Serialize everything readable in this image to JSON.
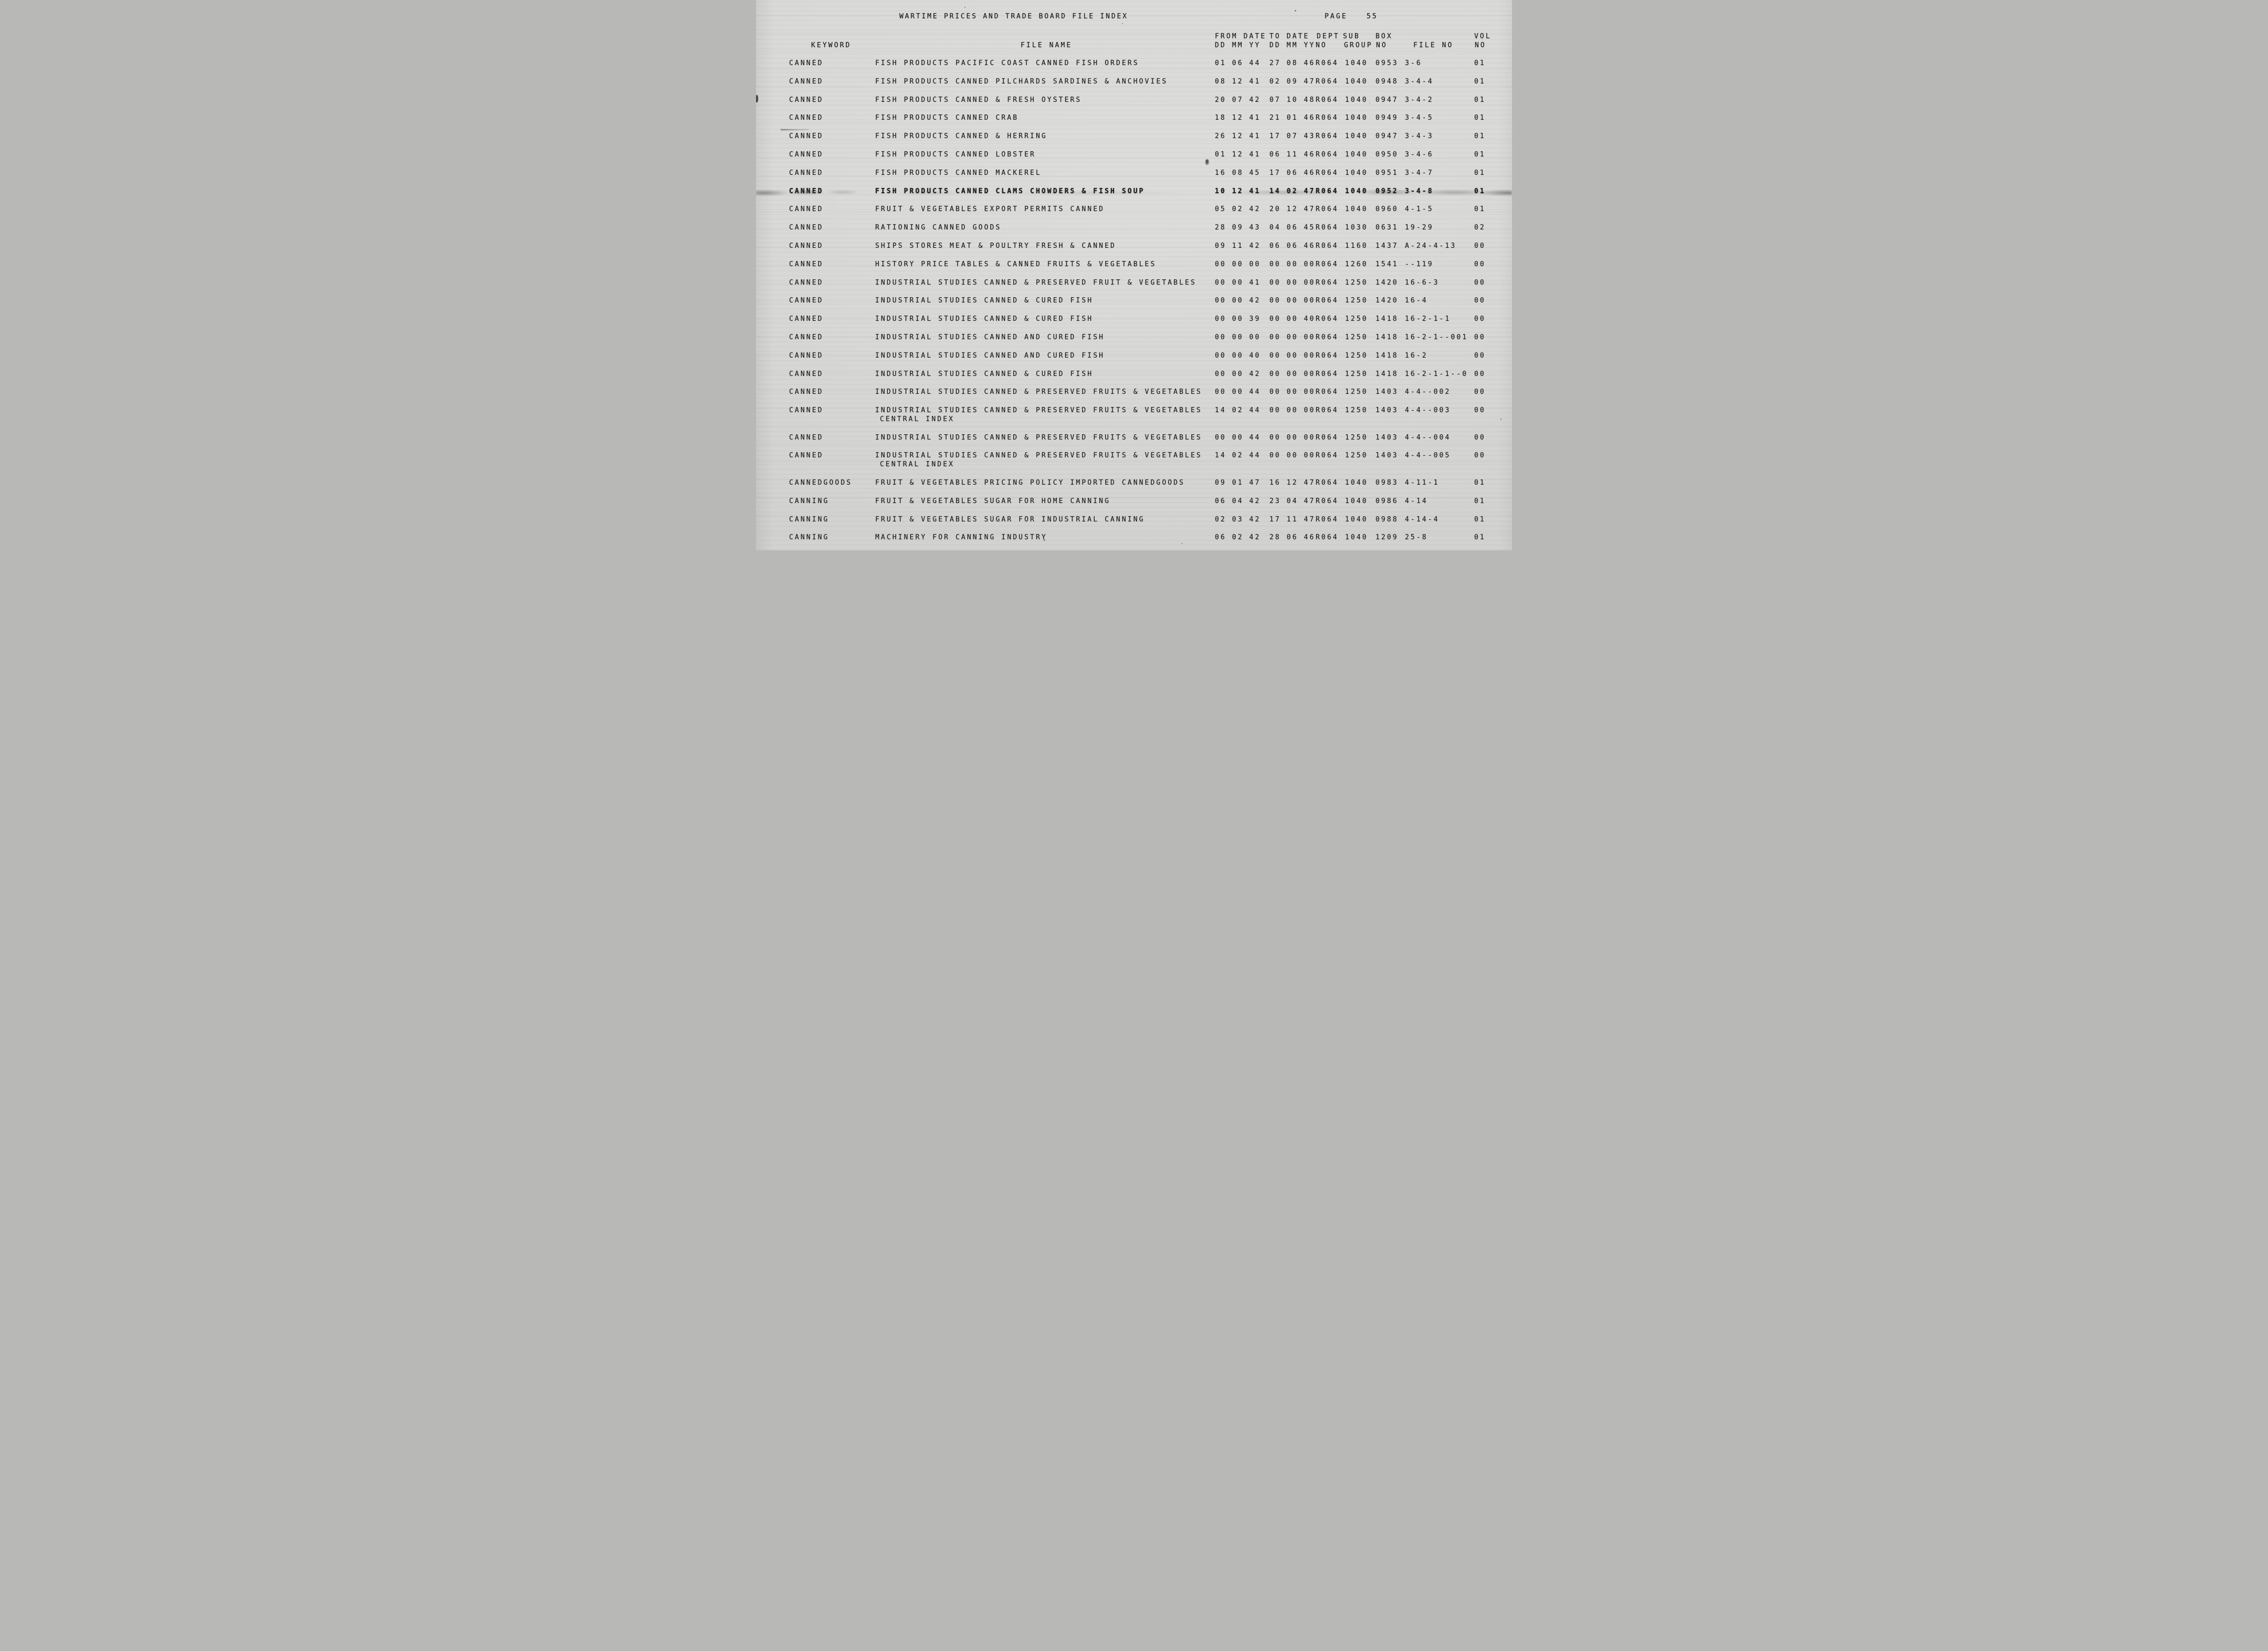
{
  "page": {
    "title": "WARTIME PRICES AND TRADE BOARD FILE INDEX",
    "page_label": "PAGE",
    "page_number": "55"
  },
  "table": {
    "headers": {
      "keyword": "KEYWORD",
      "file_name": "FILE NAME",
      "from_date_top": "FROM DATE",
      "from_date_bottom": "DD MM YY",
      "to_date_top": "TO DATE",
      "to_date_bottom": "DD MM YY",
      "dept_top": "DEPT",
      "dept_bottom": "NO",
      "sub_top": "SUB",
      "sub_bottom": "GROUP",
      "box_top": "BOX",
      "box_bottom": "NO",
      "file_no": "FILE NO",
      "vol_top": "VOL",
      "vol_bottom": "NO"
    },
    "rows": [
      {
        "keyword": "CANNED",
        "file_name": "FISH PRODUCTS PACIFIC COAST CANNED FISH ORDERS",
        "from_date": "01 06 44",
        "to_date": "27 08 46",
        "dept_no": "R064",
        "sub_group": "1040",
        "box_no": "0953",
        "file_no": "3-6",
        "vol_no": "01"
      },
      {
        "keyword": "CANNED",
        "file_name": "FISH PRODUCTS CANNED PILCHARDS SARDINES & ANCHOVIES",
        "from_date": "08 12 41",
        "to_date": "02 09 47",
        "dept_no": "R064",
        "sub_group": "1040",
        "box_no": "0948",
        "file_no": "3-4-4",
        "vol_no": "01"
      },
      {
        "keyword": "CANNED",
        "file_name": "FISH PRODUCTS CANNED & FRESH OYSTERS",
        "from_date": "20 07 42",
        "to_date": "07 10 48",
        "dept_no": "R064",
        "sub_group": "1040",
        "box_no": "0947",
        "file_no": "3-4-2",
        "vol_no": "01"
      },
      {
        "keyword": "CANNED",
        "file_name": "FISH PRODUCTS CANNED CRAB",
        "from_date": "18 12 41",
        "to_date": "21 01 46",
        "dept_no": "R064",
        "sub_group": "1040",
        "box_no": "0949",
        "file_no": "3-4-5",
        "vol_no": "01"
      },
      {
        "keyword": "CANNED",
        "file_name": "FISH PRODUCTS CANNED & HERRING",
        "from_date": "26 12 41",
        "to_date": "17 07 43",
        "dept_no": "R064",
        "sub_group": "1040",
        "box_no": "0947",
        "file_no": "3-4-3",
        "vol_no": "01"
      },
      {
        "keyword": "CANNED",
        "file_name": "FISH PRODUCTS CANNED LOBSTER",
        "from_date": "01 12 41",
        "to_date": "06 11 46",
        "dept_no": "R064",
        "sub_group": "1040",
        "box_no": "0950",
        "file_no": "3-4-6",
        "vol_no": "01"
      },
      {
        "keyword": "CANNED",
        "file_name": "FISH PRODUCTS CANNED MACKEREL",
        "from_date": "16 08 45",
        "to_date": "17 06 46",
        "dept_no": "R064",
        "sub_group": "1040",
        "box_no": "0951",
        "file_no": "3-4-7",
        "vol_no": "01"
      },
      {
        "keyword": "CANNED",
        "file_name": "FISH PRODUCTS CANNED CLAMS CHOWDERS & FISH SOUP",
        "from_date": "10 12 41",
        "to_date": "14 02 47",
        "dept_no": "R064",
        "sub_group": "1040",
        "box_no": "0952",
        "file_no": "3-4-8",
        "vol_no": "01",
        "smudged": true
      },
      {
        "keyword": "CANNED",
        "file_name": "FRUIT & VEGETABLES EXPORT PERMITS CANNED",
        "from_date": "05 02 42",
        "to_date": "20 12 47",
        "dept_no": "R064",
        "sub_group": "1040",
        "box_no": "0960",
        "file_no": "4-1-5",
        "vol_no": "01"
      },
      {
        "keyword": "CANNED",
        "file_name": "RATIONING CANNED GOODS",
        "from_date": "28 09 43",
        "to_date": "04 06 45",
        "dept_no": "R064",
        "sub_group": "1030",
        "box_no": "0631",
        "file_no": "19-29",
        "vol_no": "02"
      },
      {
        "keyword": "CANNED",
        "file_name": "SHIPS STORES MEAT & POULTRY FRESH & CANNED",
        "from_date": "09 11 42",
        "to_date": "06 06 46",
        "dept_no": "R064",
        "sub_group": "1160",
        "box_no": "1437",
        "file_no": "A-24-4-13",
        "vol_no": "00"
      },
      {
        "keyword": "CANNED",
        "file_name": "HISTORY PRICE TABLES & CANNED FRUITS & VEGETABLES",
        "from_date": "00 00 00",
        "to_date": "00 00 00",
        "dept_no": "R064",
        "sub_group": "1260",
        "box_no": "1541",
        "file_no": "--119",
        "vol_no": "00"
      },
      {
        "keyword": "CANNED",
        "file_name": "INDUSTRIAL STUDIES CANNED & PRESERVED FRUIT & VEGETABLES",
        "from_date": "00 00 41",
        "to_date": "00 00 00",
        "dept_no": "R064",
        "sub_group": "1250",
        "box_no": "1420",
        "file_no": "16-6-3",
        "vol_no": "00"
      },
      {
        "keyword": "CANNED",
        "file_name": "INDUSTRIAL STUDIES CANNED & CURED FISH",
        "from_date": "00 00 42",
        "to_date": "00 00 00",
        "dept_no": "R064",
        "sub_group": "1250",
        "box_no": "1420",
        "file_no": "16-4",
        "vol_no": "00"
      },
      {
        "keyword": "CANNED",
        "file_name": "INDUSTRIAL STUDIES CANNED & CURED FISH",
        "from_date": "00 00 39",
        "to_date": "00 00 40",
        "dept_no": "R064",
        "sub_group": "1250",
        "box_no": "1418",
        "file_no": "16-2-1-1",
        "vol_no": "00"
      },
      {
        "keyword": "CANNED",
        "file_name": "INDUSTRIAL STUDIES CANNED AND CURED FISH",
        "from_date": "00 00 00",
        "to_date": "00 00 00",
        "dept_no": "R064",
        "sub_group": "1250",
        "box_no": "1418",
        "file_no": "16-2-1--001",
        "vol_no": "00"
      },
      {
        "keyword": "CANNED",
        "file_name": "INDUSTRIAL STUDIES CANNED AND CURED FISH",
        "from_date": "00 00 40",
        "to_date": "00 00 00",
        "dept_no": "R064",
        "sub_group": "1250",
        "box_no": "1418",
        "file_no": "16-2",
        "vol_no": "00"
      },
      {
        "keyword": "CANNED",
        "file_name": "INDUSTRIAL STUDIES CANNED & CURED FISH",
        "from_date": "00 00 42",
        "to_date": "00 00 00",
        "dept_no": "R064",
        "sub_group": "1250",
        "box_no": "1418",
        "file_no": "16-2-1-1--0",
        "vol_no": "00"
      },
      {
        "keyword": "CANNED",
        "file_name": "INDUSTRIAL STUDIES CANNED & PRESERVED FRUITS & VEGETABLES",
        "from_date": "00 00 44",
        "to_date": "00 00 00",
        "dept_no": "R064",
        "sub_group": "1250",
        "box_no": "1403",
        "file_no": "4-4--002",
        "vol_no": "00"
      },
      {
        "keyword": "CANNED",
        "file_name": "INDUSTRIAL STUDIES CANNED & PRESERVED FRUITS & VEGETABLES",
        "file_name_line2": "CENTRAL INDEX",
        "from_date": "14 02 44",
        "to_date": "00 00 00",
        "dept_no": "R064",
        "sub_group": "1250",
        "box_no": "1403",
        "file_no": "4-4--003",
        "vol_no": "00"
      },
      {
        "keyword": "CANNED",
        "file_name": "INDUSTRIAL STUDIES CANNED & PRESERVED FRUITS & VEGETABLES",
        "from_date": "00 00 44",
        "to_date": "00 00 00",
        "dept_no": "R064",
        "sub_group": "1250",
        "box_no": "1403",
        "file_no": "4-4--004",
        "vol_no": "00"
      },
      {
        "keyword": "CANNED",
        "file_name": "INDUSTRIAL STUDIES CANNED & PRESERVED FRUITS & VEGETABLES",
        "file_name_line2": "CENTRAL INDEX",
        "from_date": "14 02 44",
        "to_date": "00 00 00",
        "dept_no": "R064",
        "sub_group": "1250",
        "box_no": "1403",
        "file_no": "4-4--005",
        "vol_no": "00"
      },
      {
        "keyword": "CANNEDGOODS",
        "file_name": "FRUIT & VEGETABLES PRICING POLICY IMPORTED CANNEDGOODS",
        "from_date": "09 01 47",
        "to_date": "16 12 47",
        "dept_no": "R064",
        "sub_group": "1040",
        "box_no": "0983",
        "file_no": "4-11-1",
        "vol_no": "01"
      },
      {
        "keyword": "CANNING",
        "file_name": "FRUIT & VEGETABLES SUGAR FOR HOME CANNING",
        "from_date": "06 04 42",
        "to_date": "23 04 47",
        "dept_no": "R064",
        "sub_group": "1040",
        "box_no": "0986",
        "file_no": "4-14",
        "vol_no": "01"
      },
      {
        "keyword": "CANNING",
        "file_name": "FRUIT & VEGETABLES SUGAR FOR INDUSTRIAL CANNING",
        "from_date": "02 03 42",
        "to_date": "17 11 47",
        "dept_no": "R064",
        "sub_group": "1040",
        "box_no": "0988",
        "file_no": "4-14-4",
        "vol_no": "01"
      },
      {
        "keyword": "CANNING",
        "file_name": "MACHINERY FOR CANNING INDUSTRY",
        "from_date": "06 02 42",
        "to_date": "28 06 46",
        "dept_no": "R064",
        "sub_group": "1040",
        "box_no": "1209",
        "file_no": "25-8",
        "vol_no": "01"
      }
    ]
  }
}
